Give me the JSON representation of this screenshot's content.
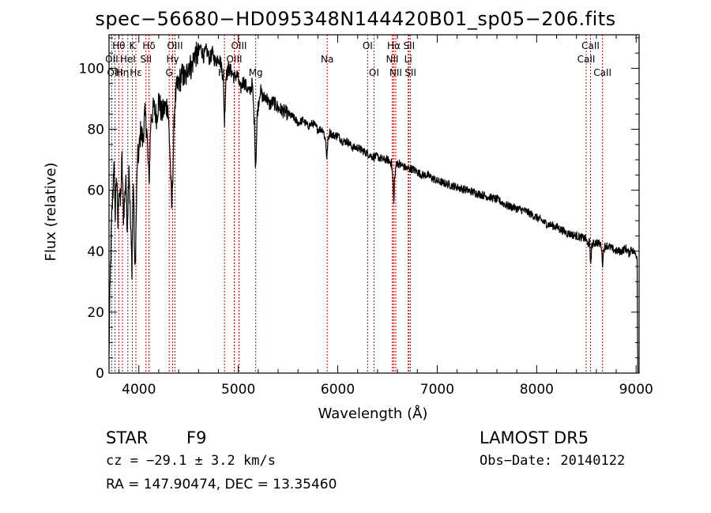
{
  "title": "spec−56680−HD095348N144420B01_sp05−206.fits",
  "info": {
    "object_class": "STAR",
    "subclass": "F9",
    "survey": "LAMOST  DR5",
    "cz": "cz = −29.1 ± 3.2 km/s",
    "obs_date": "Obs−Date: 20140122",
    "coords": "RA = 147.90474, DEC =  13.35460"
  },
  "chart_data": {
    "type": "line",
    "title": "spec−56680−HD095348N144420B01_sp05−206.fits",
    "xlabel": "Wavelength (Å)",
    "ylabel": "Flux (relative)",
    "xlim": [
      3700,
      9030
    ],
    "ylim": [
      0,
      111
    ],
    "xticks": [
      4000,
      5000,
      6000,
      7000,
      8000,
      9000
    ],
    "yticks": [
      0,
      20,
      40,
      60,
      80,
      100
    ],
    "series": [
      {
        "color": "#000000",
        "anchors": [
          [
            3700,
            5
          ],
          [
            3705,
            18
          ],
          [
            3715,
            35
          ],
          [
            3725,
            48
          ],
          [
            3740,
            60
          ],
          [
            3750,
            72
          ],
          [
            3760,
            50
          ],
          [
            3775,
            66
          ],
          [
            3790,
            48
          ],
          [
            3800,
            62
          ],
          [
            3815,
            55
          ],
          [
            3830,
            70
          ],
          [
            3845,
            52
          ],
          [
            3860,
            58
          ],
          [
            3870,
            66
          ],
          [
            3880,
            48
          ],
          [
            3890,
            55
          ],
          [
            3900,
            70
          ],
          [
            3915,
            50
          ],
          [
            3930,
            35
          ],
          [
            3945,
            64
          ],
          [
            3960,
            32
          ],
          [
            3970,
            45
          ],
          [
            3985,
            70
          ],
          [
            4000,
            72
          ],
          [
            4020,
            80
          ],
          [
            4040,
            76
          ],
          [
            4060,
            85
          ],
          [
            4080,
            80
          ],
          [
            4102,
            62
          ],
          [
            4120,
            83
          ],
          [
            4150,
            87
          ],
          [
            4180,
            84
          ],
          [
            4200,
            90
          ],
          [
            4230,
            85
          ],
          [
            4260,
            87
          ],
          [
            4290,
            88
          ],
          [
            4310,
            75
          ],
          [
            4320,
            65
          ],
          [
            4330,
            53
          ],
          [
            4345,
            70
          ],
          [
            4360,
            88
          ],
          [
            4380,
            93
          ],
          [
            4410,
            96
          ],
          [
            4440,
            98
          ],
          [
            4470,
            96
          ],
          [
            4500,
            102
          ],
          [
            4530,
            100
          ],
          [
            4560,
            105
          ],
          [
            4590,
            104
          ],
          [
            4620,
            107
          ],
          [
            4650,
            104
          ],
          [
            4680,
            106
          ],
          [
            4710,
            103
          ],
          [
            4740,
            105
          ],
          [
            4770,
            102
          ],
          [
            4800,
            104
          ],
          [
            4830,
            101
          ],
          [
            4850,
            96
          ],
          [
            4861,
            82
          ],
          [
            4875,
            97
          ],
          [
            4900,
            100
          ],
          [
            4930,
            99
          ],
          [
            4960,
            97
          ],
          [
            4990,
            98
          ],
          [
            5020,
            93
          ],
          [
            5050,
            96
          ],
          [
            5080,
            94
          ],
          [
            5110,
            92
          ],
          [
            5140,
            95
          ],
          [
            5165,
            80
          ],
          [
            5172,
            68
          ],
          [
            5180,
            72
          ],
          [
            5190,
            85
          ],
          [
            5220,
            93
          ],
          [
            5250,
            90
          ],
          [
            5280,
            91
          ],
          [
            5310,
            88
          ],
          [
            5350,
            89
          ],
          [
            5400,
            87
          ],
          [
            5450,
            86
          ],
          [
            5500,
            85
          ],
          [
            5550,
            84
          ],
          [
            5600,
            82
          ],
          [
            5650,
            83
          ],
          [
            5700,
            81
          ],
          [
            5750,
            82
          ],
          [
            5800,
            80
          ],
          [
            5850,
            80
          ],
          [
            5880,
            76
          ],
          [
            5890,
            70
          ],
          [
            5900,
            76
          ],
          [
            5920,
            79
          ],
          [
            5950,
            78
          ],
          [
            6000,
            78
          ],
          [
            6050,
            76
          ],
          [
            6100,
            76
          ],
          [
            6150,
            74
          ],
          [
            6200,
            74
          ],
          [
            6250,
            73
          ],
          [
            6300,
            72
          ],
          [
            6350,
            71
          ],
          [
            6400,
            71
          ],
          [
            6450,
            70
          ],
          [
            6500,
            70
          ],
          [
            6540,
            69
          ],
          [
            6555,
            63
          ],
          [
            6563,
            55
          ],
          [
            6570,
            63
          ],
          [
            6590,
            69
          ],
          [
            6650,
            68
          ],
          [
            6700,
            67
          ],
          [
            6750,
            67
          ],
          [
            6800,
            66
          ],
          [
            6850,
            65
          ],
          [
            6900,
            65
          ],
          [
            6950,
            64
          ],
          [
            7000,
            63
          ],
          [
            7100,
            62
          ],
          [
            7200,
            61
          ],
          [
            7300,
            60
          ],
          [
            7400,
            59
          ],
          [
            7500,
            58
          ],
          [
            7600,
            57
          ],
          [
            7700,
            55
          ],
          [
            7800,
            54
          ],
          [
            7900,
            53
          ],
          [
            8000,
            51
          ],
          [
            8100,
            49
          ],
          [
            8200,
            48
          ],
          [
            8300,
            46
          ],
          [
            8400,
            45
          ],
          [
            8498,
            44
          ],
          [
            8510,
            42
          ],
          [
            8530,
            43
          ],
          [
            8542,
            36
          ],
          [
            8555,
            42
          ],
          [
            8600,
            43
          ],
          [
            8650,
            42
          ],
          [
            8662,
            36
          ],
          [
            8675,
            41
          ],
          [
            8700,
            42
          ],
          [
            8750,
            41
          ],
          [
            8800,
            40
          ],
          [
            8850,
            40
          ],
          [
            8900,
            41
          ],
          [
            8930,
            39
          ],
          [
            8950,
            41
          ],
          [
            8970,
            40
          ],
          [
            9000,
            39
          ],
          [
            9010,
            38
          ],
          [
            9015,
            10
          ],
          [
            9018,
            0
          ]
        ],
        "noise_amplitude": 2.0
      }
    ],
    "line_markers": [
      {
        "label": "Hθ",
        "wavelength": 3798,
        "row": 0
      },
      {
        "label": "OII",
        "wavelength": 3727,
        "row": 1
      },
      {
        "label": "OIII",
        "wavelength": 3760,
        "row": 2
      },
      {
        "label": "K",
        "wavelength": 3934,
        "row": 0
      },
      {
        "label": "HeI",
        "wavelength": 3889,
        "row": 1
      },
      {
        "label": "Hη",
        "wavelength": 3835,
        "row": 2
      },
      {
        "label": "Hε",
        "wavelength": 3970,
        "row": 2
      },
      {
        "label": "Hδ",
        "wavelength": 4102,
        "row": 0
      },
      {
        "label": "SII",
        "wavelength": 4072,
        "row": 1
      },
      {
        "label": "OIII",
        "wavelength": 4363,
        "row": 0
      },
      {
        "label": "Hγ",
        "wavelength": 4340,
        "row": 1
      },
      {
        "label": "G",
        "wavelength": 4305,
        "row": 2
      },
      {
        "label": "OIII",
        "wavelength": 5007,
        "row": 0
      },
      {
        "label": "OIII",
        "wavelength": 4959,
        "row": 1
      },
      {
        "label": "Hβ",
        "wavelength": 4861,
        "row": 2
      },
      {
        "label": "Mg",
        "wavelength": 5175,
        "row": 2
      },
      {
        "label": "Na",
        "wavelength": 5894,
        "row": 1
      },
      {
        "label": "OI",
        "wavelength": 6300,
        "row": 0
      },
      {
        "label": "OI",
        "wavelength": 6364,
        "row": 2
      },
      {
        "label": "Hα",
        "wavelength": 6563,
        "row": 0
      },
      {
        "label": "NII",
        "wavelength": 6548,
        "row": 1
      },
      {
        "label": "NII",
        "wavelength": 6583,
        "row": 2
      },
      {
        "label": "SII",
        "wavelength": 6717,
        "row": 0
      },
      {
        "label": "Li",
        "wavelength": 6708,
        "row": 1
      },
      {
        "label": "SII",
        "wavelength": 6731,
        "row": 2
      },
      {
        "label": "CaII",
        "wavelength": 8542,
        "row": 0
      },
      {
        "label": "CaII",
        "wavelength": 8498,
        "row": 1
      },
      {
        "label": "CaII",
        "wavelength": 8662,
        "row": 2
      }
    ]
  },
  "colors": {
    "marker_line": "#cc0000",
    "axes": "#000000",
    "spectrum": "#000000"
  }
}
